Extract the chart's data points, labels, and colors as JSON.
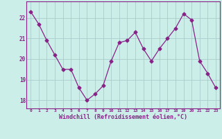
{
  "x": [
    0,
    1,
    2,
    3,
    4,
    5,
    6,
    7,
    8,
    9,
    10,
    11,
    12,
    13,
    14,
    15,
    16,
    17,
    18,
    19,
    20,
    21,
    22,
    23
  ],
  "y": [
    22.3,
    21.7,
    20.9,
    20.2,
    19.5,
    19.5,
    18.6,
    18.0,
    18.3,
    18.7,
    19.9,
    20.8,
    20.9,
    21.3,
    20.5,
    19.9,
    20.5,
    21.0,
    21.5,
    22.2,
    21.9,
    19.9,
    19.3,
    18.6
  ],
  "line_color": "#882288",
  "marker": "D",
  "marker_size": 2.5,
  "bg_color": "#cceee8",
  "grid_color": "#aacccc",
  "xlabel": "Windchill (Refroidissement éolien,°C)",
  "xlabel_color": "#882288",
  "tick_color": "#882288",
  "ylim": [
    17.6,
    22.8
  ],
  "yticks": [
    18,
    19,
    20,
    21,
    22
  ],
  "xticks": [
    0,
    1,
    2,
    3,
    4,
    5,
    6,
    7,
    8,
    9,
    10,
    11,
    12,
    13,
    14,
    15,
    16,
    17,
    18,
    19,
    20,
    21,
    22,
    23
  ],
  "spine_color": "#882288",
  "axis_bg_color": "#cceee8"
}
